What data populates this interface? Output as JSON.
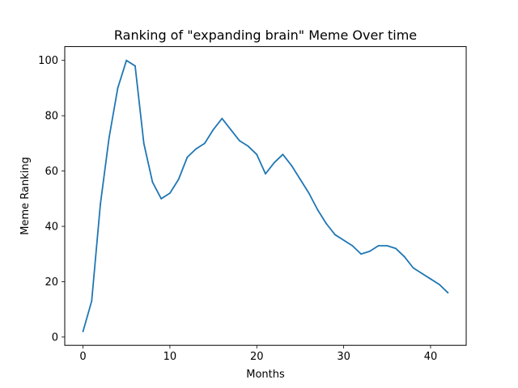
{
  "chart_data": {
    "type": "line",
    "title": "Ranking of \"expanding brain\" Meme Over time",
    "xlabel": "Months",
    "ylabel": "Meme Ranking",
    "xlim": [
      -2.1,
      44.1
    ],
    "ylim": [
      -3,
      105
    ],
    "xticks": [
      0,
      10,
      20,
      30,
      40
    ],
    "yticks": [
      0,
      20,
      40,
      60,
      80,
      100
    ],
    "grid": false,
    "series": [
      {
        "color": "#1f77b4",
        "x": [
          0,
          1,
          2,
          3,
          4,
          5,
          6,
          7,
          8,
          9,
          10,
          11,
          12,
          13,
          14,
          15,
          16,
          17,
          18,
          19,
          20,
          21,
          22,
          23,
          24,
          25,
          26,
          27,
          28,
          29,
          30,
          31,
          32,
          33,
          34,
          35,
          36,
          37,
          38,
          39,
          40,
          41,
          42
        ],
        "y": [
          2,
          13,
          48,
          72,
          90,
          100,
          98,
          70,
          56,
          50,
          52,
          57,
          65,
          68,
          70,
          75,
          79,
          75,
          71,
          69,
          66,
          59,
          63,
          66,
          62,
          57,
          52,
          46,
          41,
          37,
          35,
          33,
          30,
          31,
          33,
          33,
          32,
          29,
          25,
          23,
          21,
          19,
          16
        ]
      }
    ]
  }
}
